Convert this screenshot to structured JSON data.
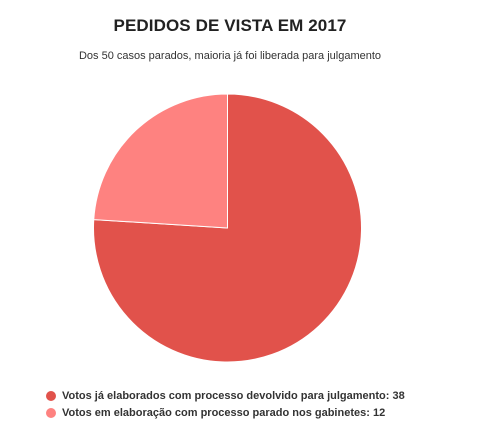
{
  "chart_data": {
    "type": "pie",
    "title": "PEDIDOS DE VISTA EM 2017",
    "subtitle": "Dos 50 casos parados, maioria já foi liberada para julgamento",
    "slices": [
      {
        "label": "Votos já elaborados com processo devolvido para julgamento:",
        "value": 38,
        "value_text": "38",
        "color": "#e1524b"
      },
      {
        "label": "Votos em elaboração com processo parado nos gabinetes:",
        "value": 12,
        "value_text": "12",
        "color": "#fe8280"
      }
    ],
    "legend_position": "bottom-left"
  }
}
